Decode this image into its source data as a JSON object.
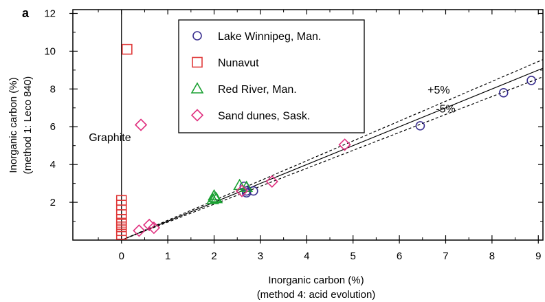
{
  "panel_label": "a",
  "chart_data": {
    "type": "scatter",
    "xlabel": [
      "Inorganic carbon (%)",
      "(method 4: acid evolution)"
    ],
    "ylabel": [
      "Inorganic carbon (%)",
      "(method 1: Leco 840)"
    ],
    "xlim": [
      -1.05,
      9.1
    ],
    "ylim": [
      0,
      12.2
    ],
    "xticks": [
      0,
      1,
      2,
      3,
      4,
      5,
      6,
      7,
      8,
      9
    ],
    "yticks": [
      2,
      4,
      6,
      8,
      10,
      12
    ],
    "grid": false,
    "legend_position": "top-center",
    "series": [
      {
        "name": "Lake Winnipeg, Man.",
        "marker": "circle",
        "color": "#3a2f8f",
        "x": [
          2.65,
          2.7,
          2.7,
          2.85,
          6.45,
          8.25,
          8.85
        ],
        "y": [
          2.85,
          2.6,
          2.5,
          2.6,
          6.05,
          7.8,
          8.45
        ]
      },
      {
        "name": "Nunavut",
        "marker": "square",
        "color": "#e03a3a",
        "x": [
          0.12,
          0,
          0,
          0,
          0,
          0,
          0,
          0,
          0,
          0
        ],
        "y": [
          10.1,
          2.1,
          1.85,
          1.6,
          1.35,
          1.1,
          0.9,
          0.7,
          0.5,
          0.3
        ]
      },
      {
        "name": "Red River, Man.",
        "marker": "triangle",
        "color": "#1aa032",
        "x": [
          1.97,
          2.02,
          2.0,
          2.05,
          2.55,
          2.7
        ],
        "y": [
          2.15,
          2.25,
          2.35,
          2.2,
          2.9,
          2.8
        ]
      },
      {
        "name": "Sand dunes, Sask.",
        "marker": "diamond",
        "color": "#e0307f",
        "x": [
          0.42,
          0.38,
          0.6,
          0.7,
          2.6,
          3.25,
          4.82
        ],
        "y": [
          6.1,
          0.5,
          0.8,
          0.65,
          2.6,
          3.1,
          5.05
        ]
      }
    ],
    "lines": [
      {
        "style": "solid",
        "slope": 1.0
      },
      {
        "style": "dashed",
        "slope": 1.05
      },
      {
        "style": "dashed",
        "slope": 0.95
      }
    ],
    "annotations": [
      {
        "text": "Graphite",
        "x": -0.25,
        "y": 5.25
      },
      {
        "text": "+5%",
        "x": 6.85,
        "y": 7.75
      },
      {
        "text": "-5%",
        "x": 7.0,
        "y": 6.75
      }
    ]
  }
}
